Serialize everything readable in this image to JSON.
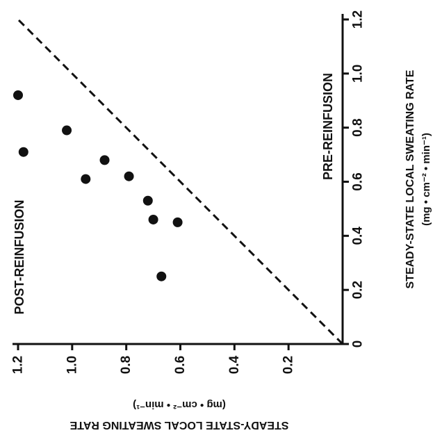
{
  "chart_data": {
    "type": "scatter",
    "title": "",
    "x_axis": {
      "label": "STEADY-STATE LOCAL SWEATING RATE",
      "unit": "(mg • cm⁻² • min⁻¹)",
      "range": [
        0,
        1.2
      ],
      "ticks": [
        {
          "value": 0.2,
          "label": "0.2"
        },
        {
          "value": 0.4,
          "label": "0.4"
        },
        {
          "value": 0.6,
          "label": "0.6"
        },
        {
          "value": 0.8,
          "label": "0.8"
        },
        {
          "value": 1.0,
          "label": "1.0"
        },
        {
          "value": 1.2,
          "label": "1.2"
        }
      ]
    },
    "y_axis": {
      "label": "STEADY-STATE LOCAL SWEATING RATE",
      "unit": "(mg • cm⁻² • min⁻¹)",
      "range": [
        0,
        1.2
      ],
      "ticks": [
        {
          "value": 0,
          "label": "0"
        },
        {
          "value": 0.2,
          "label": "0.2"
        },
        {
          "value": 0.4,
          "label": "0.4"
        },
        {
          "value": 0.6,
          "label": "0.6"
        },
        {
          "value": 0.8,
          "label": "0.8"
        },
        {
          "value": 1.0,
          "label": "1.0"
        },
        {
          "value": 1.2,
          "label": "1.2"
        }
      ]
    },
    "region_labels": {
      "post": "POST-REINFUSION",
      "pre": "PRE-REINFUSION"
    },
    "identity_line": {
      "from": [
        0,
        0
      ],
      "to": [
        1.2,
        1.2
      ],
      "style": "dashed"
    },
    "points": [
      {
        "x": 1.2,
        "y": 0.92
      },
      {
        "x": 1.18,
        "y": 0.71
      },
      {
        "x": 1.02,
        "y": 0.79
      },
      {
        "x": 0.95,
        "y": 0.61
      },
      {
        "x": 0.88,
        "y": 0.68
      },
      {
        "x": 0.79,
        "y": 0.62
      },
      {
        "x": 0.72,
        "y": 0.53
      },
      {
        "x": 0.7,
        "y": 0.46
      },
      {
        "x": 0.61,
        "y": 0.45
      },
      {
        "x": 0.67,
        "y": 0.25
      }
    ],
    "grid": false,
    "legend": "none",
    "colors": {
      "ink": "#111111",
      "background": "#ffffff"
    }
  }
}
